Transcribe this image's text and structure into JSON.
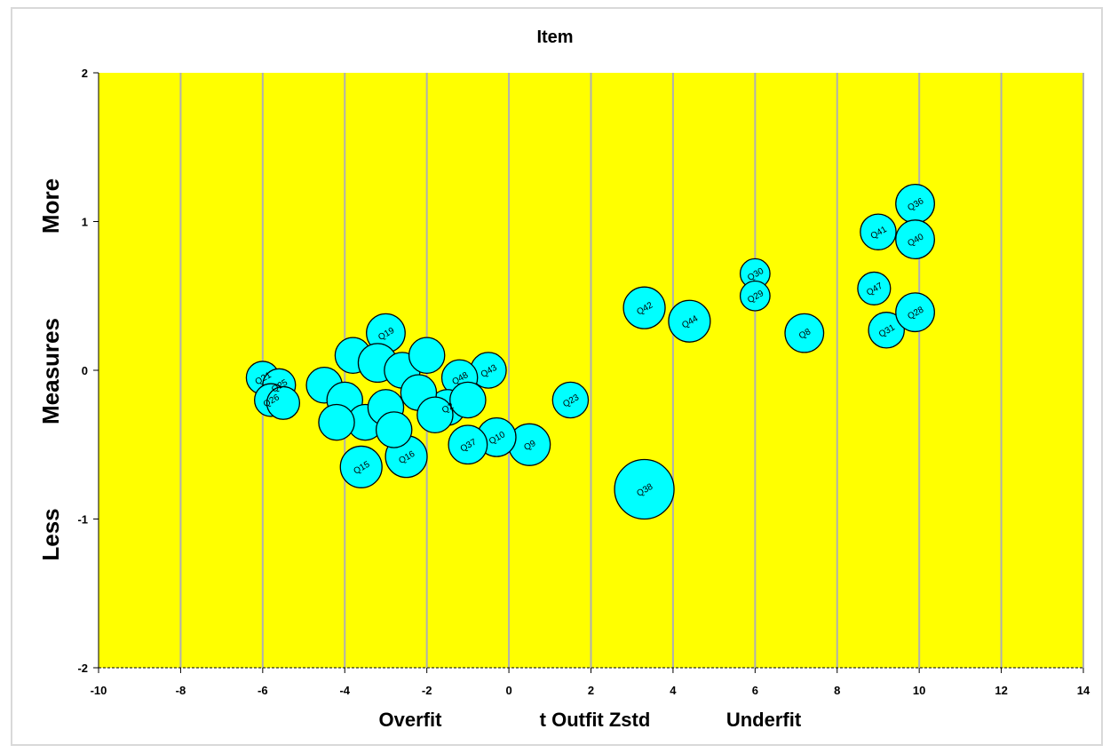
{
  "chart_data": {
    "type": "scatter",
    "subtype": "bubble",
    "title": "Item",
    "xlabel": "t Outfit Zstd",
    "xlabel_left": "Overfit",
    "xlabel_right": "Underfit",
    "ylabel": "Measures",
    "ylabel_top": "More",
    "ylabel_bottom": "Less",
    "xlim": [
      -10,
      14
    ],
    "ylim": [
      -2,
      2
    ],
    "x_ticks": [
      -10,
      -8,
      -6,
      -4,
      -2,
      0,
      2,
      4,
      6,
      8,
      10,
      12,
      14
    ],
    "y_ticks": [
      -2,
      -1,
      0,
      1,
      2
    ],
    "x_tick_labels": [
      "-10",
      "-8",
      "-6",
      "-4",
      "-2",
      "0",
      "2",
      "4",
      "6",
      "8",
      "10",
      "12",
      "14"
    ],
    "y_tick_labels": [
      "-2",
      "-1",
      "0",
      "1",
      "2"
    ],
    "grid": "vertical",
    "colors": {
      "plot_bg": "#ffff00",
      "bubble_fill": "#00ffff",
      "bubble_stroke": "#000000",
      "grid": "#b0b0b0"
    },
    "points": [
      {
        "label": "Q38",
        "x": 3.3,
        "y": -0.8,
        "r": 0.2
      },
      {
        "label": "Q42",
        "x": 3.3,
        "y": 0.42,
        "r": 0.14
      },
      {
        "label": "Q44",
        "x": 4.4,
        "y": 0.33,
        "r": 0.14
      },
      {
        "label": "Q30",
        "x": 6.0,
        "y": 0.65,
        "r": 0.1
      },
      {
        "label": "Q29",
        "x": 6.0,
        "y": 0.5,
        "r": 0.1
      },
      {
        "label": "Q8",
        "x": 7.2,
        "y": 0.25,
        "r": 0.13
      },
      {
        "label": "Q41",
        "x": 9.0,
        "y": 0.93,
        "r": 0.12
      },
      {
        "label": "Q36",
        "x": 9.9,
        "y": 1.12,
        "r": 0.13
      },
      {
        "label": "Q40",
        "x": 9.9,
        "y": 0.88,
        "r": 0.13
      },
      {
        "label": "Q47",
        "x": 8.9,
        "y": 0.55,
        "r": 0.11
      },
      {
        "label": "Q31",
        "x": 9.2,
        "y": 0.27,
        "r": 0.12
      },
      {
        "label": "Q28",
        "x": 9.9,
        "y": 0.39,
        "r": 0.13
      },
      {
        "label": "Q23",
        "x": 1.5,
        "y": -0.2,
        "r": 0.12
      },
      {
        "label": "Q9",
        "x": 0.5,
        "y": -0.5,
        "r": 0.14
      },
      {
        "label": "Q10",
        "x": -0.3,
        "y": -0.45,
        "r": 0.13
      },
      {
        "label": "Q37",
        "x": -1.0,
        "y": -0.5,
        "r": 0.13
      },
      {
        "label": "Q43",
        "x": -0.5,
        "y": 0.0,
        "r": 0.12
      },
      {
        "label": "Q48",
        "x": -1.2,
        "y": -0.05,
        "r": 0.12
      },
      {
        "label": "Q2",
        "x": -1.5,
        "y": -0.25,
        "r": 0.12
      },
      {
        "label": "Q19",
        "x": -3.0,
        "y": 0.25,
        "r": 0.13
      },
      {
        "label": "Q16",
        "x": -2.5,
        "y": -0.58,
        "r": 0.14
      },
      {
        "label": "Q15",
        "x": -3.6,
        "y": -0.65,
        "r": 0.14
      },
      {
        "label": "Q21",
        "x": -6.0,
        "y": -0.05,
        "r": 0.11
      },
      {
        "label": "Q25",
        "x": -5.6,
        "y": -0.1,
        "r": 0.11
      },
      {
        "label": "Q26",
        "x": -5.8,
        "y": -0.2,
        "r": 0.11
      },
      {
        "label": "",
        "x": -5.5,
        "y": -0.22,
        "r": 0.11
      },
      {
        "label": "",
        "x": -4.5,
        "y": -0.1,
        "r": 0.12
      },
      {
        "label": "",
        "x": -4.0,
        "y": -0.2,
        "r": 0.12
      },
      {
        "label": "",
        "x": -3.8,
        "y": 0.1,
        "r": 0.12
      },
      {
        "label": "",
        "x": -3.2,
        "y": 0.05,
        "r": 0.13
      },
      {
        "label": "",
        "x": -3.5,
        "y": -0.35,
        "r": 0.12
      },
      {
        "label": "",
        "x": -3.0,
        "y": -0.25,
        "r": 0.12
      },
      {
        "label": "",
        "x": -2.6,
        "y": 0.0,
        "r": 0.12
      },
      {
        "label": "",
        "x": -2.2,
        "y": -0.15,
        "r": 0.12
      },
      {
        "label": "",
        "x": -2.0,
        "y": 0.1,
        "r": 0.12
      },
      {
        "label": "",
        "x": -1.8,
        "y": -0.3,
        "r": 0.12
      },
      {
        "label": "",
        "x": -2.8,
        "y": -0.4,
        "r": 0.12
      },
      {
        "label": "",
        "x": -4.2,
        "y": -0.35,
        "r": 0.12
      },
      {
        "label": "",
        "x": -1.0,
        "y": -0.2,
        "r": 0.12
      }
    ]
  }
}
